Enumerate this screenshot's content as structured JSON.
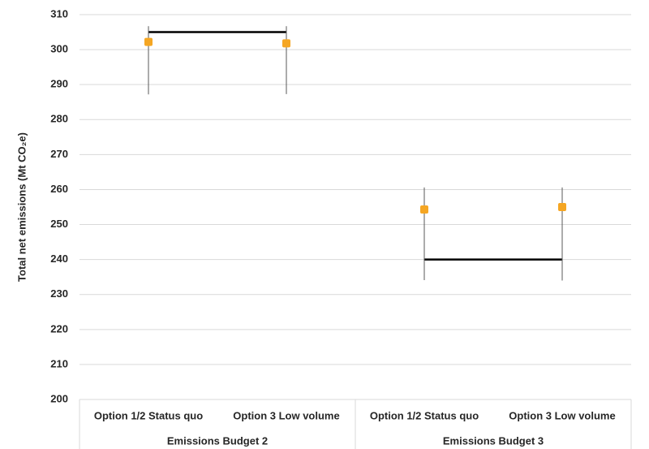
{
  "chart_data": {
    "type": "errorbar",
    "y_axis_label": "Total net emissions (Mt CO₂e)",
    "categories": [
      "Option 1/2 Status quo",
      "Option 3 Low volume",
      "Option 1/2 Status quo",
      "Option 3 Low volume"
    ],
    "groups": [
      "Emissions Budget 2",
      "Emissions Budget 3"
    ],
    "values": [
      302.2,
      301.8,
      254.3,
      255.0
    ],
    "low": [
      287.2,
      287.3,
      234.1,
      234.0
    ],
    "high": [
      306.7,
      306.7,
      260.6,
      260.6
    ],
    "budgets": [
      305,
      240
    ],
    "color": "#f5a623",
    "whisker_color": "#595959",
    "budget_color": "#000000",
    "ylim": [
      200,
      310
    ],
    "yticks": [
      200,
      210,
      220,
      230,
      240,
      250,
      260,
      270,
      280,
      290,
      300,
      310
    ],
    "grid": true
  }
}
